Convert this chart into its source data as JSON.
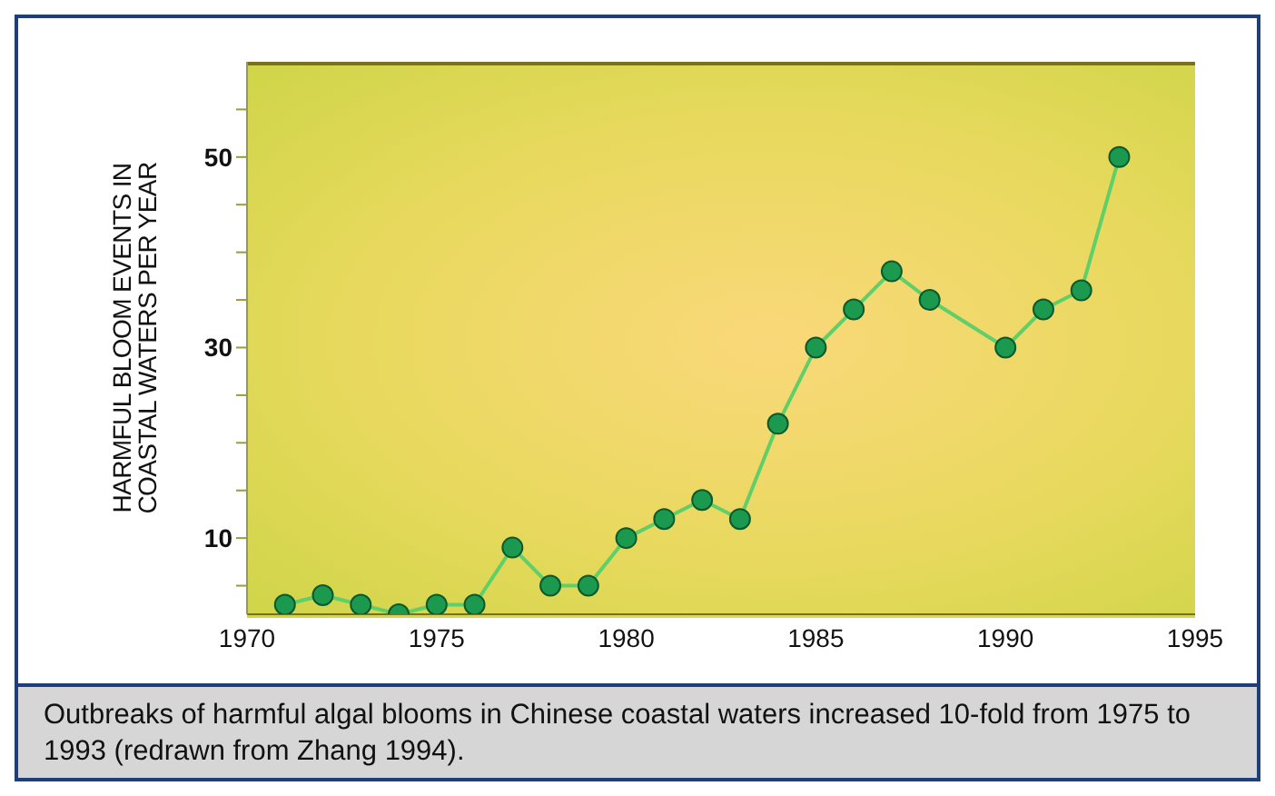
{
  "chart_data": {
    "type": "line",
    "ylabel": "HARMFUL BLOOM EVENTS IN\nCOASTAL WATERS PER YEAR",
    "x": [
      1971,
      1972,
      1973,
      1974,
      1975,
      1976,
      1977,
      1978,
      1979,
      1980,
      1981,
      1982,
      1983,
      1984,
      1985,
      1986,
      1987,
      1988,
      1990,
      1991,
      1992,
      1993
    ],
    "series": [
      {
        "color": "#1b9a4f",
        "values": [
          3,
          4,
          3,
          2,
          3,
          3,
          9,
          5,
          5,
          10,
          12,
          14,
          12,
          22,
          30,
          34,
          38,
          35,
          30,
          34,
          36,
          50
        ]
      }
    ],
    "xlim": [
      1970,
      1995
    ],
    "xticks": [
      1970,
      1975,
      1980,
      1985,
      1990,
      1995
    ],
    "ylim": [
      2,
      60
    ],
    "yticks": [
      {
        "value": 5,
        "label": null
      },
      10,
      {
        "value": 15,
        "label": null
      },
      {
        "value": 20,
        "label": null
      },
      {
        "value": 25,
        "label": null
      },
      30,
      {
        "value": 35,
        "label": null
      },
      {
        "value": 40,
        "label": null
      },
      {
        "value": 45,
        "label": null
      },
      50,
      {
        "value": 55,
        "label": null
      }
    ],
    "marker": "circle",
    "line_style": "solid",
    "grid": false,
    "legend": false,
    "annotations": [
      "Outbreaks of harmful algal blooms in Chinese coastal waters increased 10-fold from 1975 to 1993 (redrawn from Zhang 1994)."
    ]
  }
}
